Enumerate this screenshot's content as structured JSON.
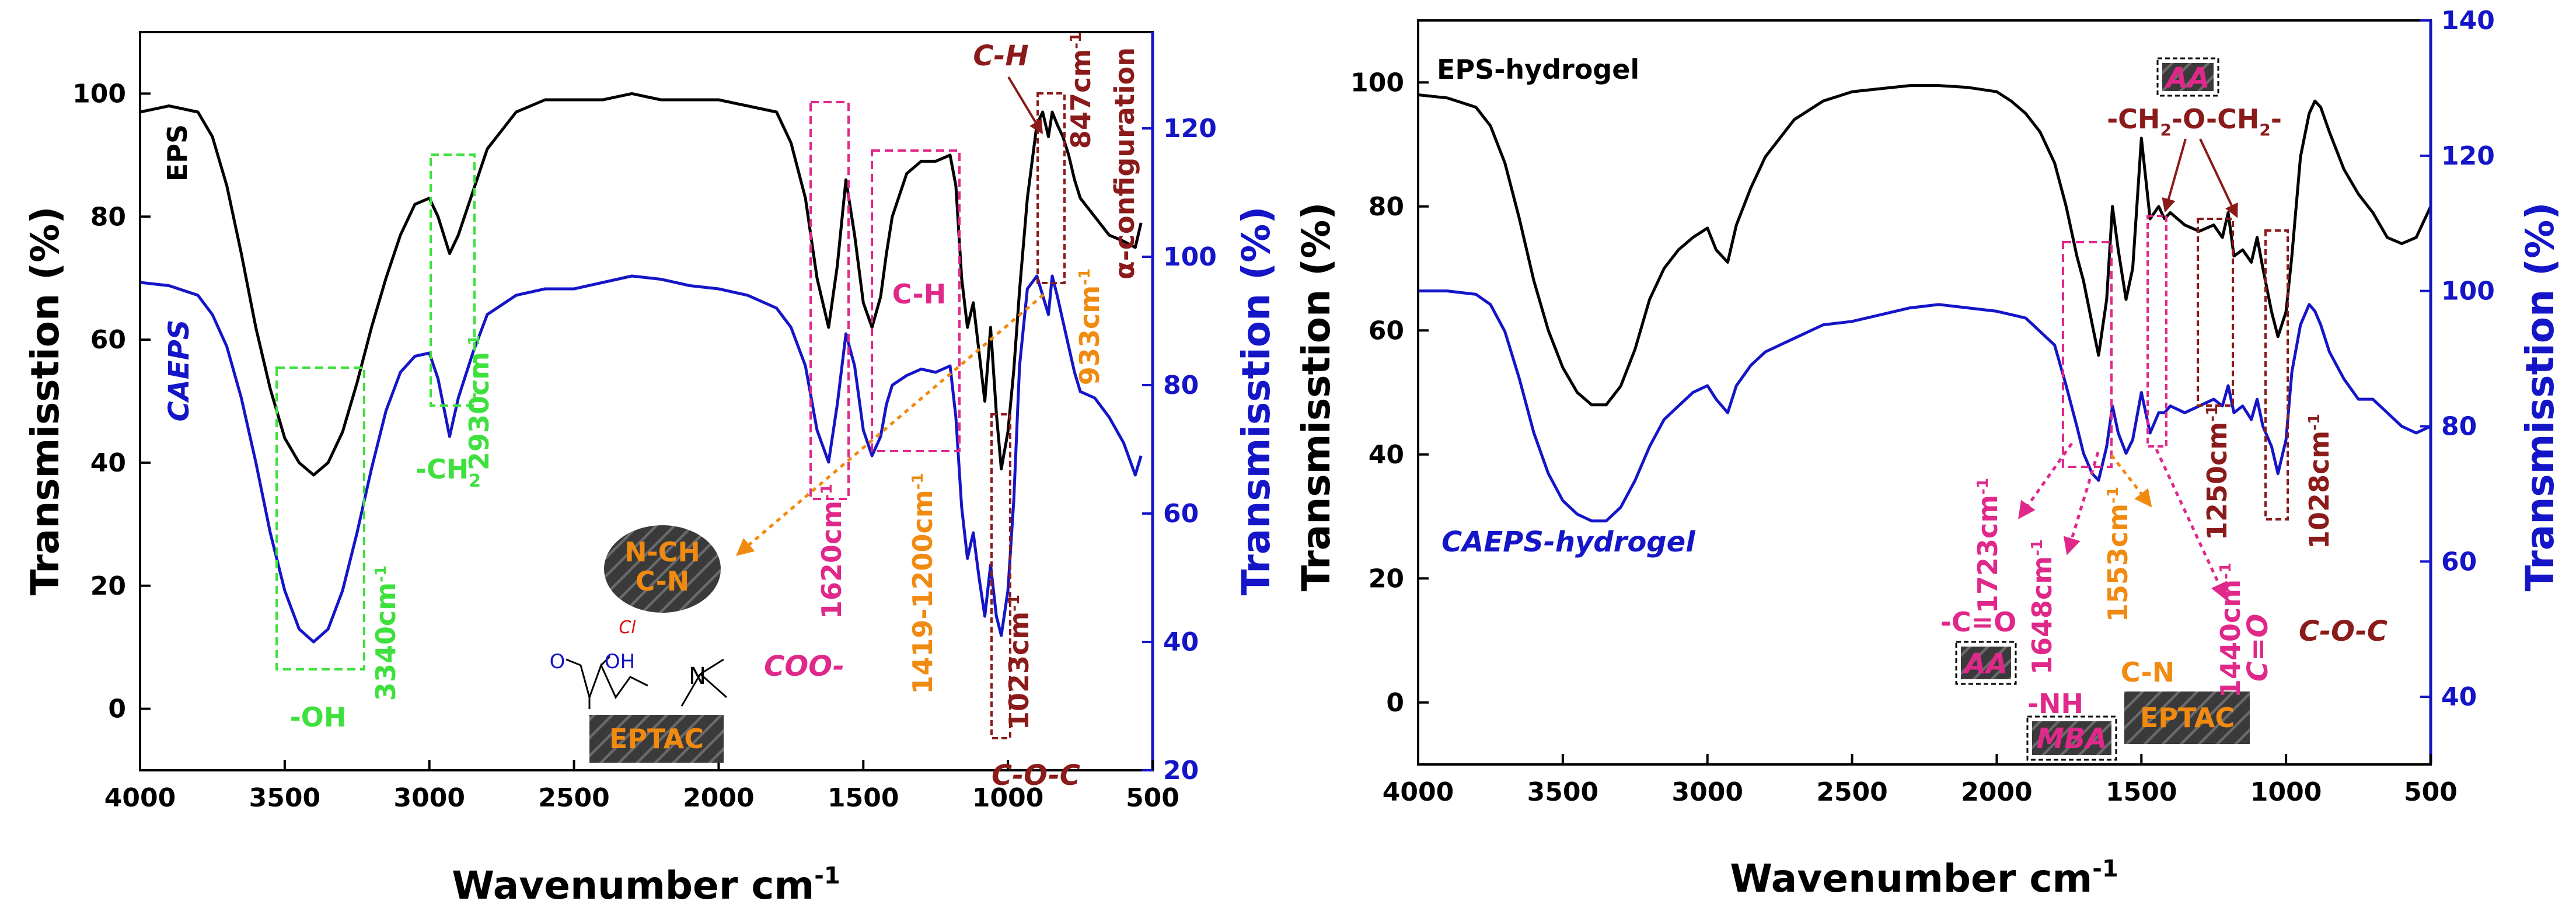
{
  "chart_data": [
    {
      "type": "line",
      "id": "left",
      "xlabel": "Wavenumber cm",
      "xlabel_sup": "-1",
      "ylabel": "Transmisstion (%)",
      "y2label": "Transmisstion (%)",
      "xlim": [
        4000,
        500
      ],
      "ylim": [
        -10,
        110
      ],
      "y2lim": [
        20,
        135
      ],
      "x_ticks": [
        4000,
        3500,
        3000,
        2500,
        2000,
        1500,
        1000,
        500
      ],
      "y_ticks": [
        0,
        20,
        40,
        60,
        80,
        100
      ],
      "y2_ticks": [
        20,
        40,
        60,
        80,
        100,
        120
      ],
      "series": [
        {
          "name": "EPS",
          "color": "#000000",
          "axis": "left",
          "x": [
            4000,
            3900,
            3800,
            3750,
            3700,
            3650,
            3600,
            3550,
            3500,
            3450,
            3400,
            3350,
            3300,
            3250,
            3200,
            3150,
            3100,
            3050,
            3000,
            2970,
            2930,
            2900,
            2850,
            2800,
            2700,
            2600,
            2500,
            2400,
            2300,
            2200,
            2100,
            2000,
            1900,
            1800,
            1750,
            1700,
            1660,
            1620,
            1590,
            1560,
            1530,
            1500,
            1470,
            1440,
            1420,
            1400,
            1350,
            1300,
            1250,
            1200,
            1180,
            1160,
            1140,
            1120,
            1100,
            1080,
            1060,
            1040,
            1023,
            1000,
            980,
            960,
            933,
            900,
            880,
            860,
            847,
            830,
            810,
            790,
            770,
            750,
            700,
            650,
            600,
            560,
            540
          ],
          "y": [
            97,
            98,
            97,
            93,
            85,
            74,
            62,
            52,
            44,
            40,
            38,
            40,
            45,
            53,
            62,
            70,
            77,
            82,
            83,
            80,
            74,
            77,
            84,
            91,
            97,
            99,
            99,
            99,
            100,
            99,
            99,
            99,
            98,
            97,
            92,
            83,
            70,
            62,
            72,
            86,
            77,
            66,
            62,
            67,
            74,
            80,
            87,
            89,
            89,
            90,
            85,
            70,
            62,
            66,
            58,
            50,
            62,
            48,
            39,
            45,
            55,
            68,
            83,
            95,
            97,
            93,
            97,
            95,
            93,
            90,
            86,
            83,
            80,
            77,
            76,
            75,
            79
          ]
        },
        {
          "name": "CAEPS",
          "color": "#1515c8",
          "axis": "right",
          "x": [
            4000,
            3900,
            3800,
            3750,
            3700,
            3650,
            3600,
            3550,
            3500,
            3450,
            3400,
            3350,
            3300,
            3250,
            3200,
            3150,
            3100,
            3050,
            3000,
            2970,
            2930,
            2900,
            2850,
            2800,
            2700,
            2600,
            2500,
            2400,
            2300,
            2200,
            2100,
            2000,
            1900,
            1800,
            1750,
            1700,
            1660,
            1620,
            1590,
            1560,
            1530,
            1500,
            1470,
            1440,
            1420,
            1400,
            1350,
            1300,
            1250,
            1200,
            1180,
            1160,
            1140,
            1120,
            1100,
            1080,
            1060,
            1040,
            1023,
            1000,
            980,
            960,
            933,
            900,
            880,
            860,
            847,
            830,
            810,
            790,
            770,
            750,
            700,
            650,
            600,
            560,
            540
          ],
          "y": [
            96,
            95.5,
            94,
            91,
            86,
            78,
            68,
            57,
            48,
            42,
            40,
            42,
            48,
            57,
            67,
            76,
            82,
            84.5,
            85,
            81,
            72,
            78,
            85,
            91,
            94,
            95,
            95,
            96,
            97,
            96.5,
            95.5,
            95,
            94,
            92,
            89,
            83,
            73,
            68,
            77,
            88,
            83,
            73,
            69,
            72,
            77,
            80,
            81.5,
            82.5,
            82,
            83,
            75,
            61,
            53,
            57,
            50,
            44,
            52,
            44,
            41,
            48,
            62,
            83,
            95,
            97,
            94,
            91,
            97,
            94,
            90,
            86,
            82,
            79,
            78,
            75,
            71,
            66,
            69
          ]
        }
      ],
      "annotations": {
        "eps": "EPS",
        "caeps": "CAEPS",
        "oh": "-OH",
        "p3340": "3340cm",
        "ch2": "-CH",
        "ch2_sub": "2",
        "p2930": "2930cm",
        "coo": "COO-",
        "p1620": "1620cm",
        "ch": "C-H",
        "p1419": "1419-1200cm",
        "coc": "C-O-C",
        "p1023": "1023cm",
        "p933": "933cm",
        "ch_top": "C-H",
        "p847": "847cm",
        "alpha": "α-configuration",
        "nch": "N-CH",
        "cn": "C-N",
        "eptac": "EPTAC",
        "cl": "Cl",
        "oh_mol": "OH",
        "o_mol": "O",
        "n_mol": "N",
        "sup": "-1"
      }
    },
    {
      "type": "line",
      "id": "right",
      "xlabel": "Wavenumber cm",
      "xlabel_sup": "-1",
      "ylabel": "Transmisstion (%)",
      "y2label": "Transmisstion (%)",
      "xlim": [
        4000,
        500
      ],
      "ylim": [
        -10,
        110
      ],
      "y2lim": [
        30,
        140
      ],
      "x_ticks": [
        4000,
        3500,
        3000,
        2500,
        2000,
        1500,
        1000,
        500
      ],
      "y_ticks": [
        0,
        20,
        40,
        60,
        80,
        100
      ],
      "y2_ticks": [
        40,
        60,
        80,
        100,
        120,
        140
      ],
      "series": [
        {
          "name": "EPS-hydrogel",
          "color": "#000000",
          "axis": "left",
          "x": [
            4000,
            3900,
            3800,
            3750,
            3700,
            3650,
            3600,
            3550,
            3500,
            3450,
            3400,
            3350,
            3300,
            3250,
            3200,
            3150,
            3100,
            3050,
            3000,
            2970,
            2930,
            2900,
            2850,
            2800,
            2700,
            2600,
            2500,
            2400,
            2300,
            2200,
            2100,
            2000,
            1950,
            1900,
            1850,
            1800,
            1760,
            1723,
            1700,
            1670,
            1648,
            1620,
            1600,
            1580,
            1553,
            1530,
            1500,
            1470,
            1440,
            1420,
            1400,
            1350,
            1300,
            1250,
            1220,
            1200,
            1180,
            1150,
            1120,
            1100,
            1080,
            1050,
            1028,
            1000,
            980,
            950,
            920,
            900,
            880,
            850,
            800,
            750,
            700,
            650,
            600,
            550,
            500
          ],
          "y": [
            98,
            97.5,
            96,
            93,
            87,
            78,
            68,
            60,
            54,
            50,
            48,
            48,
            51,
            57,
            65,
            70,
            73,
            75,
            76.5,
            73,
            71,
            77,
            83,
            88,
            94,
            97,
            98.5,
            99,
            99.5,
            99.5,
            99.2,
            98.5,
            97,
            95,
            92,
            87,
            80,
            72,
            68,
            61,
            56,
            65,
            80,
            73,
            65,
            70,
            91,
            78,
            80,
            78,
            79,
            77,
            76,
            77,
            75,
            79,
            72,
            73,
            71,
            75,
            70,
            63,
            59,
            63,
            72,
            88,
            95,
            97,
            96,
            92,
            86,
            82,
            79,
            75,
            74,
            75,
            80
          ]
        },
        {
          "name": "CAEPS-hydrogel",
          "color": "#1515c8",
          "axis": "right",
          "x": [
            4000,
            3900,
            3800,
            3750,
            3700,
            3650,
            3600,
            3550,
            3500,
            3450,
            3400,
            3350,
            3300,
            3250,
            3200,
            3150,
            3100,
            3050,
            3000,
            2970,
            2930,
            2900,
            2850,
            2800,
            2700,
            2600,
            2500,
            2400,
            2300,
            2200,
            2100,
            2000,
            1950,
            1900,
            1850,
            1800,
            1760,
            1723,
            1700,
            1670,
            1648,
            1620,
            1600,
            1580,
            1553,
            1530,
            1500,
            1470,
            1440,
            1420,
            1400,
            1350,
            1300,
            1250,
            1220,
            1200,
            1180,
            1150,
            1120,
            1100,
            1080,
            1050,
            1028,
            1000,
            980,
            950,
            920,
            900,
            880,
            850,
            800,
            750,
            700,
            650,
            600,
            550,
            500
          ],
          "y": [
            100,
            100,
            99.5,
            98,
            94,
            87,
            79,
            73,
            69,
            67,
            66,
            66,
            68,
            72,
            77,
            81,
            83,
            85,
            86,
            84,
            82,
            86,
            89,
            91,
            93,
            95,
            95.5,
            96.5,
            97.5,
            98,
            97.5,
            97,
            96.5,
            96,
            94,
            92,
            86,
            80,
            76,
            73,
            72,
            77,
            83,
            79,
            76,
            78,
            85,
            79,
            82,
            82,
            83,
            82,
            83,
            84,
            83,
            86,
            82,
            83,
            81,
            84,
            80,
            77,
            73,
            78,
            88,
            95,
            98,
            97,
            95,
            91,
            87,
            84,
            84,
            82,
            80,
            79,
            80
          ]
        }
      ],
      "annotations": {
        "eps": "EPS-hydrogel",
        "caeps": "CAEPS-hydrogel",
        "aa_top": "AA",
        "ether": "-CH",
        "ether_mid": "-O-CH",
        "ether_end": "-",
        "sub2": "2",
        "p1723": "1723cm",
        "co1": "-C=O",
        "aa_bot": "AA",
        "p1648": "1648cm",
        "nh": "-NH",
        "mba": "MBA",
        "p1553": "1553cm",
        "cn": "C-N",
        "eptac": "EPTAC",
        "p1440": "1440cm",
        "co2": "C=O",
        "p1250": "1250cm",
        "p1028": "1028cm",
        "coc": "C-O-C",
        "sup": "-1"
      }
    }
  ]
}
